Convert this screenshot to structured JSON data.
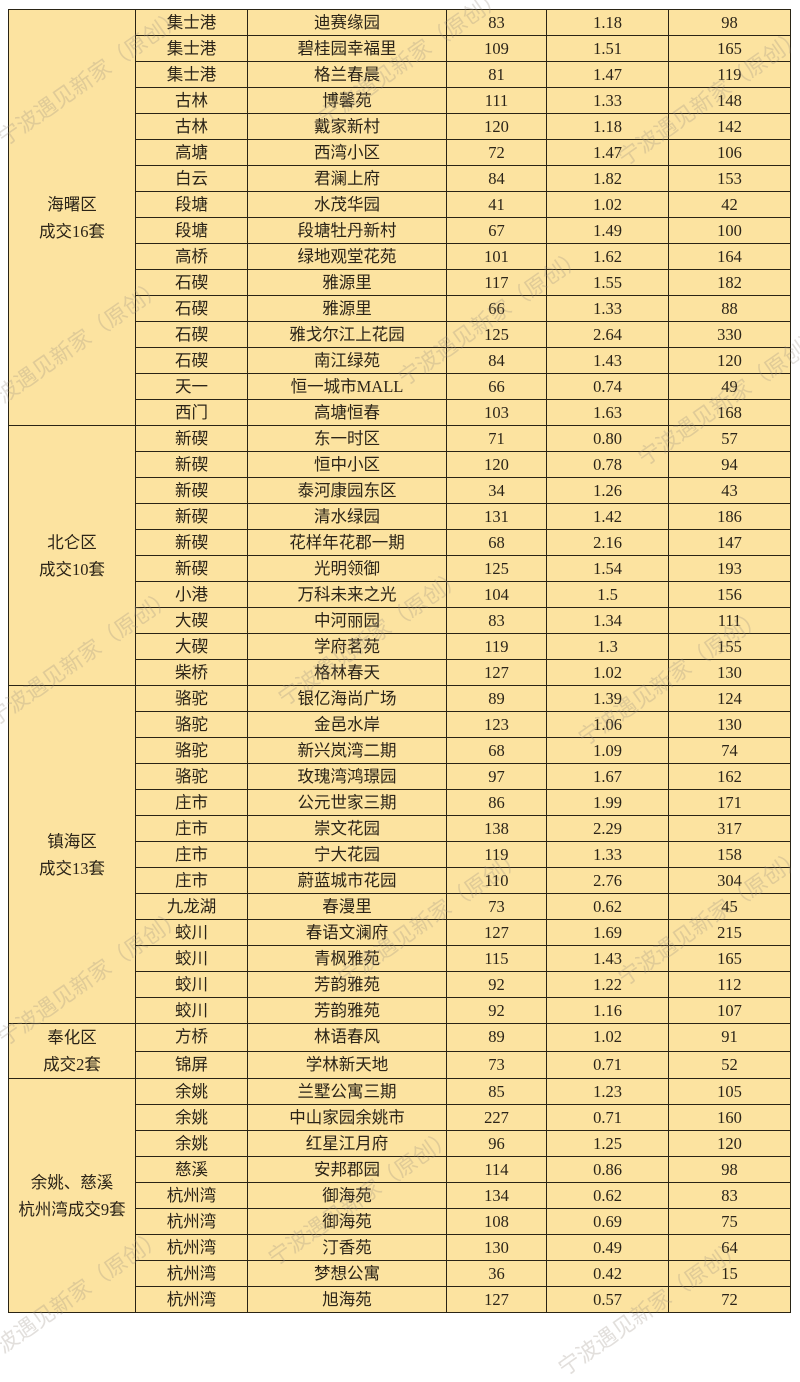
{
  "watermark": "宁波遇见新家（原创）",
  "colors": {
    "cell_bg": "#fce3a0",
    "border": "#2a2415",
    "text": "#2b2418"
  },
  "groups": [
    {
      "district": "海曙区",
      "deals": "成交16套",
      "rows": [
        [
          "集士港",
          "迪赛缘园",
          "83",
          "1.18",
          "98"
        ],
        [
          "集士港",
          "碧桂园幸福里",
          "109",
          "1.51",
          "165"
        ],
        [
          "集士港",
          "格兰春晨",
          "81",
          "1.47",
          "119"
        ],
        [
          "古林",
          "博馨苑",
          "111",
          "1.33",
          "148"
        ],
        [
          "古林",
          "戴家新村",
          "120",
          "1.18",
          "142"
        ],
        [
          "高塘",
          "西湾小区",
          "72",
          "1.47",
          "106"
        ],
        [
          "白云",
          "君澜上府",
          "84",
          "1.82",
          "153"
        ],
        [
          "段塘",
          "水茂华园",
          "41",
          "1.02",
          "42"
        ],
        [
          "段塘",
          "段塘牡丹新村",
          "67",
          "1.49",
          "100"
        ],
        [
          "高桥",
          "绿地观堂花苑",
          "101",
          "1.62",
          "164"
        ],
        [
          "石碶",
          "雅源里",
          "117",
          "1.55",
          "182"
        ],
        [
          "石碶",
          "雅源里",
          "66",
          "1.33",
          "88"
        ],
        [
          "石碶",
          "雅戈尔江上花园",
          "125",
          "2.64",
          "330"
        ],
        [
          "石碶",
          "南江绿苑",
          "84",
          "1.43",
          "120"
        ],
        [
          "天一",
          "恒一城市MALL",
          "66",
          "0.74",
          "49"
        ],
        [
          "西门",
          "高塘恒春",
          "103",
          "1.63",
          "168"
        ]
      ]
    },
    {
      "district": "北仑区",
      "deals": "成交10套",
      "rows": [
        [
          "新碶",
          "东一时区",
          "71",
          "0.80",
          "57"
        ],
        [
          "新碶",
          "恒中小区",
          "120",
          "0.78",
          "94"
        ],
        [
          "新碶",
          "泰河康园东区",
          "34",
          "1.26",
          "43"
        ],
        [
          "新碶",
          "清水绿园",
          "131",
          "1.42",
          "186"
        ],
        [
          "新碶",
          "花样年花郡一期",
          "68",
          "2.16",
          "147"
        ],
        [
          "新碶",
          "光明领御",
          "125",
          "1.54",
          "193"
        ],
        [
          "小港",
          "万科未来之光",
          "104",
          "1.5",
          "156"
        ],
        [
          "大碶",
          "中河丽园",
          "83",
          "1.34",
          "111"
        ],
        [
          "大碶",
          "学府茗苑",
          "119",
          "1.3",
          "155"
        ],
        [
          "柴桥",
          "格林春天",
          "127",
          "1.02",
          "130"
        ]
      ]
    },
    {
      "district": "镇海区",
      "deals": "成交13套",
      "rows": [
        [
          "骆驼",
          "银亿海尚广场",
          "89",
          "1.39",
          "124"
        ],
        [
          "骆驼",
          "金邑水岸",
          "123",
          "1.06",
          "130"
        ],
        [
          "骆驼",
          "新兴岚湾二期",
          "68",
          "1.09",
          "74"
        ],
        [
          "骆驼",
          "玫瑰湾鸿璟园",
          "97",
          "1.67",
          "162"
        ],
        [
          "庄市",
          "公元世家三期",
          "86",
          "1.99",
          "171"
        ],
        [
          "庄市",
          "崇文花园",
          "138",
          "2.29",
          "317"
        ],
        [
          "庄市",
          "宁大花园",
          "119",
          "1.33",
          "158"
        ],
        [
          "庄市",
          "蔚蓝城市花园",
          "110",
          "2.76",
          "304"
        ],
        [
          "九龙湖",
          "春漫里",
          "73",
          "0.62",
          "45"
        ],
        [
          "蛟川",
          "春语文澜府",
          "127",
          "1.69",
          "215"
        ],
        [
          "蛟川",
          "青枫雅苑",
          "115",
          "1.43",
          "165"
        ],
        [
          "蛟川",
          "芳韵雅苑",
          "92",
          "1.22",
          "112"
        ],
        [
          "蛟川",
          "芳韵雅苑",
          "92",
          "1.16",
          "107"
        ]
      ]
    },
    {
      "district": "奉化区",
      "deals": "成交2套",
      "rows": [
        [
          "方桥",
          "林语春风",
          "89",
          "1.02",
          "91"
        ],
        [
          "锦屏",
          "学林新天地",
          "73",
          "0.71",
          "52"
        ]
      ]
    },
    {
      "district": "余姚、慈溪",
      "deals": "杭州湾成交9套",
      "rows": [
        [
          "余姚",
          "兰墅公寓三期",
          "85",
          "1.23",
          "105"
        ],
        [
          "余姚",
          "中山家园余姚市",
          "227",
          "0.71",
          "160"
        ],
        [
          "余姚",
          "红星江月府",
          "96",
          "1.25",
          "120"
        ],
        [
          "慈溪",
          "安邦郡园",
          "114",
          "0.86",
          "98"
        ],
        [
          "杭州湾",
          "御海苑",
          "134",
          "0.62",
          "83"
        ],
        [
          "杭州湾",
          "御海苑",
          "108",
          "0.69",
          "75"
        ],
        [
          "杭州湾",
          "汀香苑",
          "130",
          "0.49",
          "64"
        ],
        [
          "杭州湾",
          "梦想公寓",
          "36",
          "0.42",
          "15"
        ],
        [
          "杭州湾",
          "旭海苑",
          "127",
          "0.57",
          "72"
        ]
      ]
    }
  ]
}
